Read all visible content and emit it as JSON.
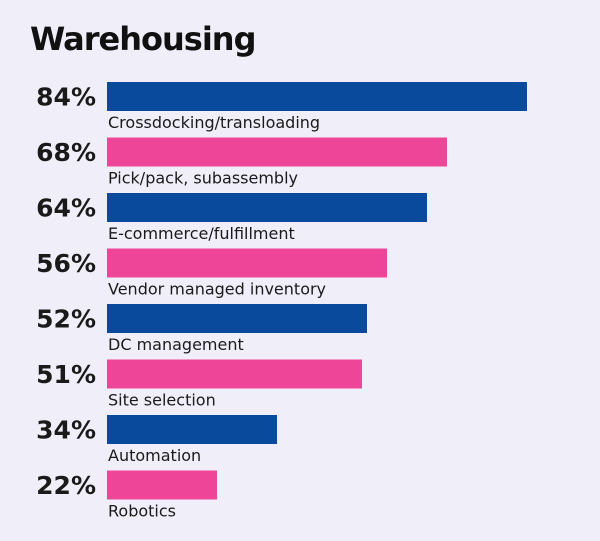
{
  "title": "Warehousing",
  "colors": {
    "background": "#f0eef8",
    "blue": "#0a4a9c",
    "pink": "#ee4599"
  },
  "chart_data": {
    "type": "bar",
    "orientation": "horizontal",
    "title": "Warehousing",
    "categories": [
      "Crossdocking/transloading",
      "Pick/pack, subassembly",
      "E-commerce/fulfillment",
      "Vendor managed inventory",
      "DC management",
      "Site selection",
      "Automation",
      "Robotics"
    ],
    "values": [
      84,
      68,
      64,
      56,
      52,
      51,
      34,
      22
    ],
    "value_labels": [
      "84%",
      "68%",
      "64%",
      "56%",
      "52%",
      "51%",
      "34%",
      "22%"
    ],
    "bar_colors": [
      "#0a4a9c",
      "#ee4599",
      "#0a4a9c",
      "#ee4599",
      "#0a4a9c",
      "#ee4599",
      "#0a4a9c",
      "#ee4599"
    ],
    "xlim": [
      0,
      100
    ],
    "grid": false,
    "legend": "none"
  }
}
